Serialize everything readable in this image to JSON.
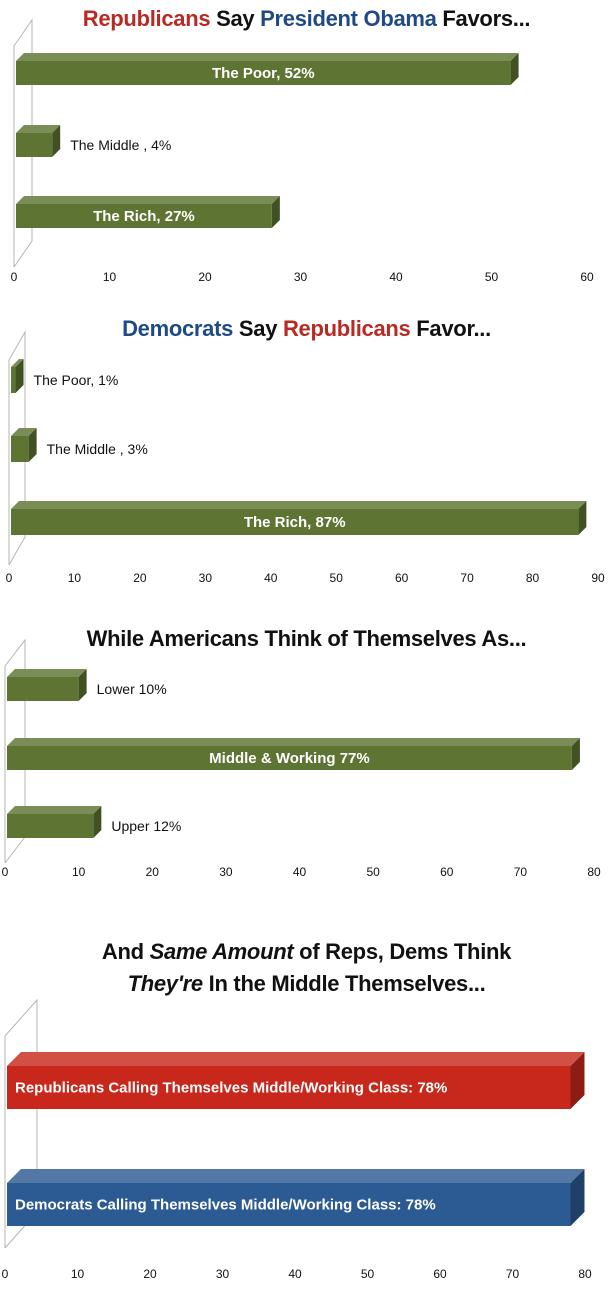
{
  "chart_data": [
    {
      "type": "bar",
      "orientation": "horizontal",
      "title": {
        "parts": [
          {
            "text": "Republicans",
            "color": "#b82b25"
          },
          {
            "text": " Say ",
            "color": "#111111"
          },
          {
            "text": "President Obama",
            "color": "#1f4a87"
          },
          {
            "text": " Favors...",
            "color": "#111111"
          }
        ]
      },
      "xlim": [
        0,
        60
      ],
      "ticks": [
        "0",
        "10",
        "20",
        "30",
        "40",
        "50",
        "60"
      ],
      "tick_values": [
        0,
        10,
        20,
        30,
        40,
        50,
        60
      ],
      "bar_color": "#5e7432",
      "categories": [
        "The Poor",
        "The Middle",
        "The Rich"
      ],
      "values": [
        52,
        4,
        27
      ],
      "labels": [
        "The Poor, 52%",
        "The Middle , 4%",
        "The Rich, 27%"
      ],
      "label_inside": [
        true,
        false,
        true
      ]
    },
    {
      "type": "bar",
      "orientation": "horizontal",
      "title": {
        "parts": [
          {
            "text": "Democrats",
            "color": "#1f4a87"
          },
          {
            "text": " Say ",
            "color": "#111111"
          },
          {
            "text": "Republicans",
            "color": "#b82b25"
          },
          {
            "text": " Favor...",
            "color": "#111111"
          }
        ]
      },
      "xlim": [
        0,
        90
      ],
      "ticks": [
        "0",
        "10",
        "20",
        "30",
        "40",
        "50",
        "60",
        "70",
        "80",
        "90"
      ],
      "tick_values": [
        0,
        10,
        20,
        30,
        40,
        50,
        60,
        70,
        80,
        90
      ],
      "bar_color": "#5e7432",
      "categories": [
        "The Poor",
        "The Middle",
        "The Rich"
      ],
      "values": [
        1,
        3,
        87
      ],
      "labels": [
        "The Poor, 1%",
        "The Middle , 3%",
        "The Rich, 87%"
      ],
      "label_inside": [
        false,
        false,
        true
      ]
    },
    {
      "type": "bar",
      "orientation": "horizontal",
      "title": {
        "parts": [
          {
            "text": "While Americans Think of Themselves As...",
            "color": "#111111"
          }
        ]
      },
      "xlim": [
        0,
        80
      ],
      "ticks": [
        "0",
        "10",
        "20",
        "30",
        "40",
        "50",
        "60",
        "70",
        "80"
      ],
      "tick_values": [
        0,
        10,
        20,
        30,
        40,
        50,
        60,
        70,
        80
      ],
      "bar_color": "#5e7432",
      "categories": [
        "Lower",
        "Middle & Working",
        "Upper"
      ],
      "values": [
        10,
        77,
        12
      ],
      "labels": [
        "Lower 10%",
        "Middle & Working 77%",
        "Upper 12%"
      ],
      "label_inside": [
        false,
        true,
        false
      ]
    },
    {
      "type": "bar",
      "orientation": "horizontal",
      "title": {
        "lines": [
          [
            {
              "text": "And ",
              "italic": false
            },
            {
              "text": "Same Amount",
              "italic": true
            },
            {
              "text": " of Reps, Dems Think",
              "italic": false
            }
          ],
          [
            {
              "text": "They're",
              "italic": true
            },
            {
              "text": " In the Middle Themselves...",
              "italic": false
            }
          ]
        ]
      },
      "xlim": [
        0,
        80
      ],
      "ticks": [
        "0",
        "10",
        "20",
        "30",
        "40",
        "50",
        "60",
        "70",
        "80"
      ],
      "tick_values": [
        0,
        10,
        20,
        30,
        40,
        50,
        60,
        70,
        80
      ],
      "bar_colors": [
        "#c8281c",
        "#2c5b93"
      ],
      "categories": [
        "Republicans Calling Themselves Middle/Working Class",
        "Democrats Calling Themselves Middle/Working Class"
      ],
      "values": [
        78,
        78
      ],
      "labels": [
        "Republicans Calling Themselves Middle/Working Class:  78%",
        "Democrats Calling Themselves Middle/Working Class:  78%"
      ],
      "label_inside": [
        true,
        true
      ]
    }
  ]
}
